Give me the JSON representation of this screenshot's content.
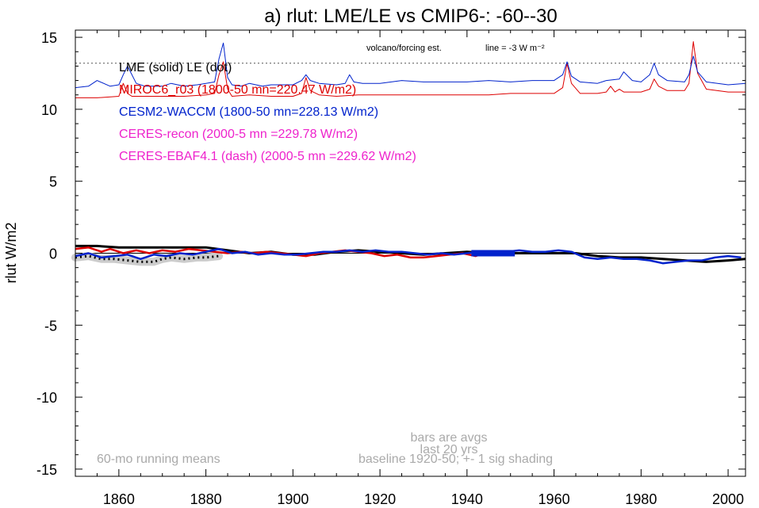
{
  "chart_data": {
    "type": "line",
    "title": "a) rlut: LME/LE vs CMIP6-: -60--30",
    "ylabel": "rlut W/m2",
    "xlabel": "",
    "xlim": [
      1850,
      2004
    ],
    "ylim": [
      -15.5,
      15.5
    ],
    "xticks": [
      1860,
      1880,
      1900,
      1920,
      1940,
      1960,
      1980,
      2000
    ],
    "yticks": [
      15,
      10,
      5,
      0,
      -5,
      -10,
      -15
    ],
    "grid": false,
    "legend_position": "top-left",
    "legend": [
      {
        "text": "LME (solid)   LE (dot)",
        "color": "#000000"
      },
      {
        "text": "MIROC6_r03 (1800-50 mn=220.47 W/m2)",
        "color": "#dd0000"
      },
      {
        "text": "CESM2-WACCM (1800-50 mn=228.13 W/m2)",
        "color": "#0022cc"
      },
      {
        "text": "CERES-recon (2000-5 mn =229.78 W/m2)",
        "color": "#ee22cc"
      },
      {
        "text": "CERES-EBAF4.1 (dash) (2000-5 mn =229.62 W/m2)",
        "color": "#ee22cc"
      }
    ],
    "annotations": {
      "volcano": "volcano/forcing est.",
      "line_note": "line = -3 W m⁻²",
      "running": "60-mo running means",
      "bars1": "bars are avgs",
      "bars2": "last 20 yrs",
      "baseline": "baseline 1920-50; +- 1 sig shading"
    },
    "reference_lines": {
      "zero": 0,
      "dotted": 13.2
    },
    "avg_bar": {
      "x": [
        1941,
        1951
      ],
      "y": 0,
      "color": "#0022cc"
    },
    "series": [
      {
        "name": "MIROC6_r03",
        "role": "forcing",
        "color": "#dd0000",
        "x": [
          1850,
          1855,
          1860,
          1861,
          1862,
          1863,
          1866,
          1870,
          1875,
          1880,
          1882,
          1883,
          1884,
          1885,
          1886,
          1890,
          1895,
          1900,
          1902,
          1903,
          1904,
          1906,
          1910,
          1915,
          1920,
          1925,
          1930,
          1935,
          1940,
          1945,
          1950,
          1955,
          1960,
          1962,
          1963,
          1964,
          1966,
          1970,
          1972,
          1973,
          1974,
          1975,
          1976,
          1978,
          1980,
          1982,
          1983,
          1984,
          1986,
          1990,
          1991,
          1992,
          1993,
          1995,
          2000,
          2004
        ],
        "y": [
          10.8,
          10.8,
          10.9,
          11.8,
          11.1,
          10.9,
          10.9,
          10.9,
          10.9,
          11.0,
          11.1,
          12.4,
          13.3,
          11.4,
          10.9,
          11.0,
          10.9,
          10.9,
          11.1,
          12.2,
          11.3,
          11.0,
          10.9,
          11.0,
          11.0,
          11.0,
          11.0,
          11.0,
          11.0,
          11.0,
          11.1,
          11.1,
          11.1,
          11.5,
          13.2,
          11.8,
          11.1,
          11.1,
          11.2,
          11.6,
          11.2,
          11.4,
          11.2,
          11.2,
          11.2,
          11.4,
          12.1,
          11.6,
          11.3,
          11.3,
          11.8,
          14.7,
          12.5,
          11.4,
          11.2,
          11.2
        ]
      },
      {
        "name": "CESM2-WACCM",
        "role": "forcing",
        "color": "#0022cc",
        "x": [
          1850,
          1853,
          1855,
          1858,
          1860,
          1861,
          1862,
          1864,
          1866,
          1870,
          1872,
          1875,
          1878,
          1880,
          1882,
          1883,
          1884,
          1885,
          1886,
          1888,
          1890,
          1893,
          1895,
          1898,
          1900,
          1902,
          1903,
          1904,
          1906,
          1910,
          1912,
          1913,
          1914,
          1916,
          1920,
          1925,
          1930,
          1935,
          1940,
          1945,
          1950,
          1955,
          1960,
          1962,
          1963,
          1964,
          1966,
          1970,
          1972,
          1975,
          1976,
          1978,
          1980,
          1982,
          1983,
          1984,
          1986,
          1990,
          1991,
          1992,
          1993,
          1995,
          2000,
          2004
        ],
        "y": [
          11.5,
          11.6,
          12.0,
          11.6,
          11.7,
          12.4,
          13.0,
          11.8,
          11.6,
          11.6,
          11.8,
          11.6,
          11.7,
          11.8,
          11.9,
          13.5,
          14.6,
          12.2,
          11.7,
          11.6,
          11.8,
          11.6,
          11.7,
          11.7,
          11.7,
          12.0,
          12.4,
          12.0,
          11.8,
          11.7,
          11.8,
          12.4,
          11.9,
          11.8,
          11.8,
          12.0,
          11.9,
          11.9,
          11.9,
          12.0,
          11.9,
          12.0,
          12.0,
          12.4,
          13.3,
          12.3,
          11.9,
          11.8,
          12.0,
          12.1,
          12.6,
          12.0,
          11.9,
          12.4,
          13.2,
          12.4,
          12.0,
          11.9,
          12.4,
          13.7,
          12.6,
          11.9,
          11.7,
          11.8
        ]
      },
      {
        "name": "LME (solid)",
        "role": "anomaly",
        "color": "#000000",
        "width": 3,
        "x": [
          1850,
          1855,
          1860,
          1865,
          1870,
          1875,
          1880,
          1885,
          1890,
          1895,
          1900,
          1905,
          1910,
          1915,
          1920,
          1925,
          1930,
          1935,
          1940,
          1945,
          1950,
          1955,
          1960,
          1965,
          1970,
          1975,
          1980,
          1985,
          1990,
          1995,
          2000,
          2004
        ],
        "y": [
          0.5,
          0.5,
          0.4,
          0.4,
          0.4,
          0.4,
          0.4,
          0.2,
          0.0,
          0.1,
          -0.1,
          -0.1,
          0.1,
          0.2,
          0.1,
          0.0,
          -0.1,
          0.0,
          0.1,
          0.0,
          0.0,
          0.0,
          0.0,
          0.0,
          -0.2,
          -0.3,
          -0.3,
          -0.4,
          -0.5,
          -0.6,
          -0.5,
          -0.4
        ]
      },
      {
        "name": "LE (dot)",
        "role": "anomaly",
        "color": "#000000",
        "dash": "2 4",
        "width": 3,
        "shade": true,
        "x": [
          1850,
          1853,
          1856,
          1859,
          1862,
          1865,
          1868,
          1870,
          1872,
          1875,
          1878,
          1880,
          1883
        ],
        "y": [
          -0.3,
          -0.2,
          -0.4,
          -0.4,
          -0.5,
          -0.6,
          -0.6,
          -0.4,
          -0.3,
          -0.4,
          -0.3,
          -0.3,
          -0.2
        ]
      },
      {
        "name": "MIROC6_r03",
        "role": "anomaly",
        "color": "#dd0000",
        "width": 2.5,
        "x": [
          1850,
          1853,
          1856,
          1858,
          1861,
          1864,
          1867,
          1870,
          1873,
          1876,
          1879,
          1882,
          1885,
          1888,
          1891,
          1894,
          1897,
          1900,
          1903,
          1906,
          1909,
          1912,
          1915,
          1918,
          1921,
          1924,
          1927,
          1930,
          1933,
          1936,
          1939,
          1942,
          1945
        ],
        "y": [
          0.3,
          0.4,
          0.1,
          0.3,
          0.0,
          0.2,
          0.0,
          0.2,
          0.1,
          0.3,
          0.2,
          0.1,
          0.0,
          0.1,
          0.0,
          0.1,
          0.0,
          -0.1,
          -0.2,
          0.0,
          0.1,
          0.2,
          0.1,
          0.0,
          -0.2,
          -0.1,
          -0.3,
          -0.3,
          -0.2,
          -0.1,
          0.0,
          -0.2,
          0.1
        ]
      },
      {
        "name": "CESM2-WACCM",
        "role": "anomaly",
        "color": "#0022cc",
        "width": 2.5,
        "x": [
          1850,
          1853,
          1856,
          1859,
          1862,
          1865,
          1868,
          1871,
          1874,
          1877,
          1880,
          1883,
          1886,
          1889,
          1892,
          1895,
          1898,
          1901,
          1904,
          1907,
          1910,
          1913,
          1916,
          1919,
          1922,
          1925,
          1928,
          1931,
          1934,
          1937,
          1940,
          1943,
          1946,
          1949,
          1952,
          1955,
          1958,
          1961,
          1964,
          1967,
          1970,
          1973,
          1976,
          1979,
          1982,
          1985,
          1988,
          1991,
          1994,
          1997,
          2000,
          2003
        ],
        "y": [
          -0.2,
          0.0,
          -0.3,
          -0.2,
          -0.1,
          -0.4,
          -0.1,
          -0.2,
          0.0,
          -0.1,
          0.1,
          0.3,
          0.0,
          0.1,
          -0.1,
          0.0,
          -0.1,
          -0.1,
          0.0,
          0.1,
          0.1,
          0.2,
          0.1,
          0.2,
          0.1,
          0.1,
          0.0,
          -0.1,
          0.0,
          -0.1,
          0.0,
          0.1,
          0.0,
          0.1,
          0.2,
          0.1,
          0.1,
          0.2,
          0.1,
          -0.3,
          -0.4,
          -0.3,
          -0.4,
          -0.4,
          -0.5,
          -0.7,
          -0.6,
          -0.5,
          -0.5,
          -0.3,
          -0.2,
          -0.3
        ]
      }
    ]
  }
}
